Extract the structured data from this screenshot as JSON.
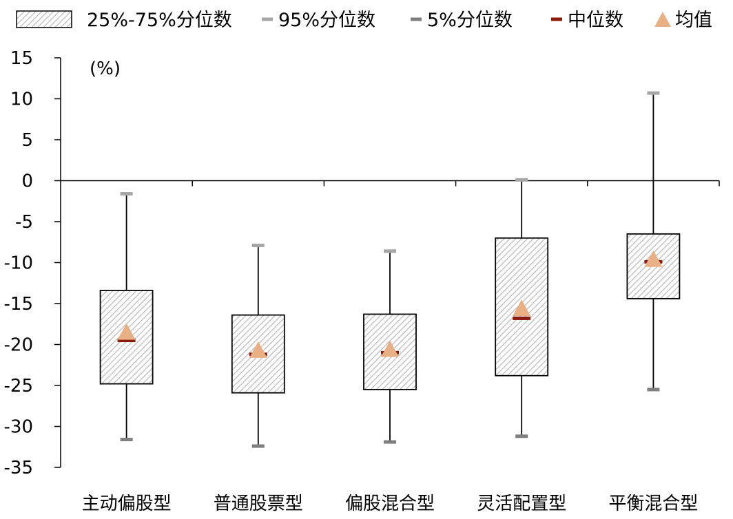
{
  "chart_data": {
    "type": "box",
    "unit_label": "(%)",
    "ylim": [
      -35,
      15
    ],
    "yticks": [
      15,
      10,
      5,
      0,
      -5,
      -10,
      -15,
      -20,
      -25,
      -30,
      -35
    ],
    "categories": [
      "主动偏股型",
      "普通股票型",
      "偏股混合型",
      "灵活配置型",
      "平衡混合型"
    ],
    "legend": {
      "placement": "top",
      "items": [
        {
          "key": "iqr",
          "label": "25%-75%分位数"
        },
        {
          "key": "p95",
          "label": "95%分位数"
        },
        {
          "key": "p5",
          "label": "5%分位数"
        },
        {
          "key": "median",
          "label": "中位数"
        },
        {
          "key": "mean",
          "label": "均值"
        }
      ]
    },
    "series": {
      "p95": [
        -1.6,
        -7.9,
        -8.6,
        0.1,
        10.7
      ],
      "q75": [
        -13.4,
        -16.4,
        -16.3,
        -7.0,
        -6.5
      ],
      "median": [
        -19.5,
        -21.2,
        -21.0,
        -16.8,
        -9.9
      ],
      "mean": [
        -18.5,
        -20.7,
        -20.6,
        -15.6,
        -9.6
      ],
      "q25": [
        -24.8,
        -25.9,
        -25.5,
        -23.8,
        -14.4
      ],
      "p5": [
        -31.6,
        -32.4,
        -31.9,
        -31.2,
        -25.5
      ]
    },
    "colors": {
      "box_fill": "#ffffff",
      "box_hatch": "#b3b3b3",
      "box_border": "#000000",
      "whisker": "#000000",
      "p95_marker": "#a6a6a6",
      "p5_marker": "#7f7f7f",
      "median_marker": "#8b1a0e",
      "mean_marker": "#e8b084",
      "axis": "#000000"
    }
  }
}
